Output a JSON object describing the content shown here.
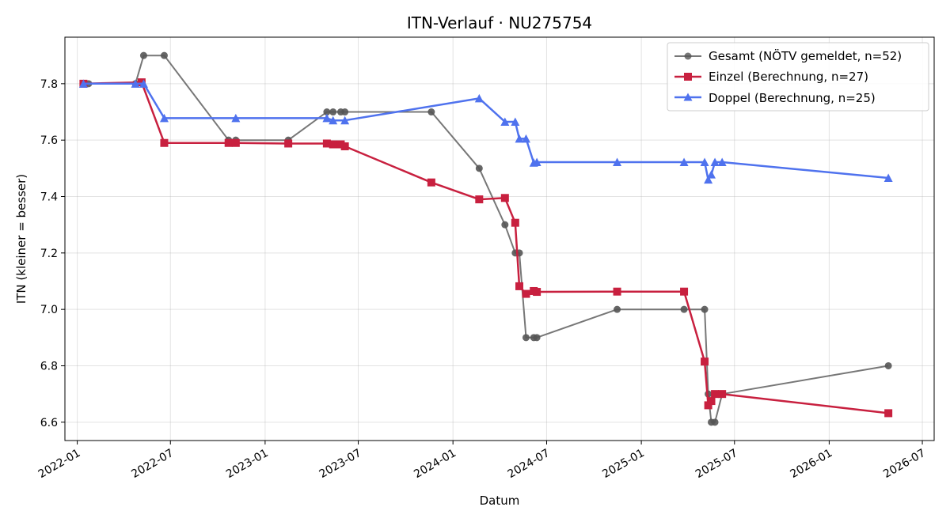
{
  "chart_data": {
    "type": "line",
    "title": "ITN-Verlauf · NU275754",
    "xlabel": "Datum",
    "ylabel": "ITN  (kleiner = besser)",
    "x_axis": "date",
    "xlim": [
      "2021-12-08",
      "2026-07-24"
    ],
    "ylim": [
      6.535,
      7.965
    ],
    "x_ticks": [
      "2022-01-01",
      "2022-07-01",
      "2023-01-01",
      "2023-07-01",
      "2024-01-01",
      "2024-07-01",
      "2025-01-01",
      "2025-07-01",
      "2026-01-01",
      "2026-07-01"
    ],
    "x_tick_labels": [
      "2022-01",
      "2022-07",
      "2023-01",
      "2023-07",
      "2024-01",
      "2024-07",
      "2025-01",
      "2025-07",
      "2026-01",
      "2026-07"
    ],
    "y_ticks": [
      6.6,
      6.8,
      7.0,
      7.2,
      7.4,
      7.6,
      7.8
    ],
    "y_tick_labels": [
      "6.6",
      "6.8",
      "7.0",
      "7.2",
      "7.4",
      "7.6",
      "7.8"
    ],
    "grid": true,
    "legend_position": "top-right",
    "series": [
      {
        "name": "Gesamt (NÖTV gemeldet, n=52)",
        "color": "#555555",
        "marker": "circle",
        "points": [
          {
            "x": "2022-01-23",
            "y": 7.8
          },
          {
            "x": "2022-04-24",
            "y": 7.8
          },
          {
            "x": "2022-05-10",
            "y": 7.9
          },
          {
            "x": "2022-06-19",
            "y": 7.9
          },
          {
            "x": "2022-10-22",
            "y": 7.6
          },
          {
            "x": "2022-11-05",
            "y": 7.6
          },
          {
            "x": "2023-02-15",
            "y": 7.6
          },
          {
            "x": "2023-05-01",
            "y": 7.7
          },
          {
            "x": "2023-05-13",
            "y": 7.7
          },
          {
            "x": "2023-05-28",
            "y": 7.7
          },
          {
            "x": "2023-06-05",
            "y": 7.7
          },
          {
            "x": "2023-11-20",
            "y": 7.7
          },
          {
            "x": "2024-02-21",
            "y": 7.5
          },
          {
            "x": "2024-04-11",
            "y": 7.3
          },
          {
            "x": "2024-05-01",
            "y": 7.2
          },
          {
            "x": "2024-05-09",
            "y": 7.2
          },
          {
            "x": "2024-05-22",
            "y": 6.9
          },
          {
            "x": "2024-06-06",
            "y": 6.9
          },
          {
            "x": "2024-06-12",
            "y": 6.9
          },
          {
            "x": "2024-11-15",
            "y": 7.0
          },
          {
            "x": "2025-03-25",
            "y": 7.0
          },
          {
            "x": "2025-05-04",
            "y": 7.0
          },
          {
            "x": "2025-05-11",
            "y": 6.7
          },
          {
            "x": "2025-05-17",
            "y": 6.6
          },
          {
            "x": "2025-05-24",
            "y": 6.6
          },
          {
            "x": "2025-06-07",
            "y": 6.7
          },
          {
            "x": "2026-04-26",
            "y": 6.8
          }
        ]
      },
      {
        "name": "Einzel (Berechnung, n=27)",
        "color": "#c8203f",
        "marker": "square",
        "points": [
          {
            "x": "2022-01-13",
            "y": 7.8
          },
          {
            "x": "2022-05-06",
            "y": 7.805
          },
          {
            "x": "2022-06-19",
            "y": 7.59
          },
          {
            "x": "2022-10-22",
            "y": 7.59
          },
          {
            "x": "2022-11-05",
            "y": 7.59
          },
          {
            "x": "2023-02-15",
            "y": 7.588
          },
          {
            "x": "2023-05-01",
            "y": 7.588
          },
          {
            "x": "2023-05-13",
            "y": 7.585
          },
          {
            "x": "2023-05-28",
            "y": 7.585
          },
          {
            "x": "2023-06-05",
            "y": 7.578
          },
          {
            "x": "2023-11-20",
            "y": 7.45
          },
          {
            "x": "2024-02-21",
            "y": 7.39
          },
          {
            "x": "2024-04-11",
            "y": 7.395
          },
          {
            "x": "2024-05-01",
            "y": 7.307
          },
          {
            "x": "2024-05-09",
            "y": 7.082
          },
          {
            "x": "2024-05-22",
            "y": 7.055
          },
          {
            "x": "2024-06-06",
            "y": 7.065
          },
          {
            "x": "2024-06-12",
            "y": 7.062
          },
          {
            "x": "2024-11-15",
            "y": 7.063
          },
          {
            "x": "2025-03-25",
            "y": 7.063
          },
          {
            "x": "2025-05-04",
            "y": 6.815
          },
          {
            "x": "2025-05-11",
            "y": 6.66
          },
          {
            "x": "2025-05-17",
            "y": 6.675
          },
          {
            "x": "2025-05-24",
            "y": 6.7
          },
          {
            "x": "2025-06-07",
            "y": 6.7
          },
          {
            "x": "2026-04-26",
            "y": 6.632
          }
        ]
      },
      {
        "name": "Doppel (Berechnung, n=25)",
        "color": "#4f72ee",
        "marker": "triangle",
        "points": [
          {
            "x": "2022-01-13",
            "y": 7.8
          },
          {
            "x": "2022-04-24",
            "y": 7.8
          },
          {
            "x": "2022-05-10",
            "y": 7.8
          },
          {
            "x": "2022-06-19",
            "y": 7.678
          },
          {
            "x": "2022-11-05",
            "y": 7.678
          },
          {
            "x": "2023-05-01",
            "y": 7.678
          },
          {
            "x": "2023-05-13",
            "y": 7.67
          },
          {
            "x": "2023-06-05",
            "y": 7.67
          },
          {
            "x": "2024-02-21",
            "y": 7.748
          },
          {
            "x": "2024-04-11",
            "y": 7.665
          },
          {
            "x": "2024-05-01",
            "y": 7.665
          },
          {
            "x": "2024-05-09",
            "y": 7.605
          },
          {
            "x": "2024-05-22",
            "y": 7.605
          },
          {
            "x": "2024-06-06",
            "y": 7.52
          },
          {
            "x": "2024-06-12",
            "y": 7.522
          },
          {
            "x": "2024-11-15",
            "y": 7.522
          },
          {
            "x": "2025-03-25",
            "y": 7.522
          },
          {
            "x": "2025-05-04",
            "y": 7.522
          },
          {
            "x": "2025-05-11",
            "y": 7.46
          },
          {
            "x": "2025-05-17",
            "y": 7.478
          },
          {
            "x": "2025-05-24",
            "y": 7.522
          },
          {
            "x": "2025-06-07",
            "y": 7.522
          },
          {
            "x": "2026-04-26",
            "y": 7.466
          }
        ]
      }
    ]
  }
}
